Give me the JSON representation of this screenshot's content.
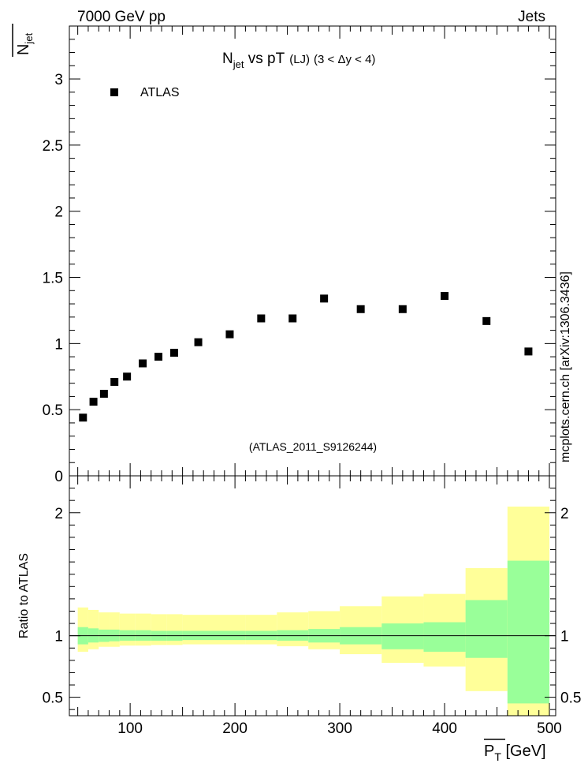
{
  "header": {
    "energy_label": "7000 GeV pp",
    "category_label": "Jets"
  },
  "side_label": "mcplots.cern.ch [arXiv:1306.3436]",
  "chart_data": {
    "type": "scatter",
    "title_main": "N",
    "title_sub": "jet",
    "title_rest": " vs pT",
    "title_selection": "(LJ)",
    "title_range": "(3 < Δy < 4)",
    "analysis_label": "(ATLAS_2011_S9126244)",
    "ylabel_main": "N",
    "ylabel_sub": "jet",
    "ratio_ylabel": "Ratio to ATLAS",
    "xlabel_main": "P",
    "xlabel_sub": "T",
    "xlabel_unit": " [GeV]",
    "legend": [
      "ATLAS"
    ],
    "xlim": [
      42,
      506
    ],
    "ylim": [
      0,
      3.4
    ],
    "ratio_ylim": [
      0.35,
      2.3
    ],
    "x_ticks": [
      100,
      200,
      300,
      400,
      500
    ],
    "x_tick_labels": [
      "100",
      "200",
      "300",
      "400",
      "500"
    ],
    "y_ticks": [
      0,
      0.5,
      1,
      1.5,
      2,
      2.5,
      3
    ],
    "y_tick_labels": [
      "0",
      "0.5",
      "1",
      "1.5",
      "2",
      "2.5",
      "3"
    ],
    "ratio_ticks": [
      0.5,
      1,
      2
    ],
    "ratio_tick_labels": [
      "0.5",
      "1",
      "2"
    ],
    "series": [
      {
        "name": "ATLAS",
        "x": [
          55,
          65,
          75,
          85,
          97,
          112,
          127,
          142,
          165,
          195,
          225,
          255,
          285,
          320,
          360,
          400,
          440,
          480
        ],
        "y": [
          0.44,
          0.56,
          0.62,
          0.71,
          0.75,
          0.85,
          0.9,
          0.93,
          1.01,
          1.07,
          1.19,
          1.19,
          1.34,
          1.26,
          1.26,
          1.36,
          1.17,
          0.94
        ]
      }
    ],
    "ratio_bands": [
      {
        "x0": 50,
        "x1": 60,
        "y_lo": 0.87,
        "y_hi": 1.23,
        "g_lo": 0.93,
        "g_hi": 1.07
      },
      {
        "x0": 60,
        "x1": 70,
        "y_lo": 0.89,
        "y_hi": 1.21,
        "g_lo": 0.945,
        "g_hi": 1.06
      },
      {
        "x0": 70,
        "x1": 80,
        "y_lo": 0.91,
        "y_hi": 1.19,
        "g_lo": 0.95,
        "g_hi": 1.05
      },
      {
        "x0": 80,
        "x1": 90,
        "y_lo": 0.91,
        "y_hi": 1.19,
        "g_lo": 0.955,
        "g_hi": 1.05
      },
      {
        "x0": 90,
        "x1": 105,
        "y_lo": 0.92,
        "y_hi": 1.18,
        "g_lo": 0.96,
        "g_hi": 1.045
      },
      {
        "x0": 105,
        "x1": 120,
        "y_lo": 0.92,
        "y_hi": 1.18,
        "g_lo": 0.96,
        "g_hi": 1.045
      },
      {
        "x0": 120,
        "x1": 135,
        "y_lo": 0.925,
        "y_hi": 1.175,
        "g_lo": 0.96,
        "g_hi": 1.04
      },
      {
        "x0": 135,
        "x1": 150,
        "y_lo": 0.925,
        "y_hi": 1.175,
        "g_lo": 0.96,
        "g_hi": 1.04
      },
      {
        "x0": 150,
        "x1": 180,
        "y_lo": 0.93,
        "y_hi": 1.17,
        "g_lo": 0.965,
        "g_hi": 1.04
      },
      {
        "x0": 180,
        "x1": 210,
        "y_lo": 0.93,
        "y_hi": 1.17,
        "g_lo": 0.965,
        "g_hi": 1.04
      },
      {
        "x0": 210,
        "x1": 240,
        "y_lo": 0.93,
        "y_hi": 1.17,
        "g_lo": 0.965,
        "g_hi": 1.04
      },
      {
        "x0": 240,
        "x1": 270,
        "y_lo": 0.915,
        "y_hi": 1.19,
        "g_lo": 0.96,
        "g_hi": 1.045
      },
      {
        "x0": 270,
        "x1": 300,
        "y_lo": 0.89,
        "y_hi": 1.2,
        "g_lo": 0.945,
        "g_hi": 1.055
      },
      {
        "x0": 300,
        "x1": 340,
        "y_lo": 0.85,
        "y_hi": 1.24,
        "g_lo": 0.93,
        "g_hi": 1.07
      },
      {
        "x0": 340,
        "x1": 380,
        "y_lo": 0.78,
        "y_hi": 1.32,
        "g_lo": 0.89,
        "g_hi": 1.1
      },
      {
        "x0": 380,
        "x1": 420,
        "y_lo": 0.75,
        "y_hi": 1.34,
        "g_lo": 0.87,
        "g_hi": 1.11
      },
      {
        "x0": 420,
        "x1": 460,
        "y_lo": 0.55,
        "y_hi": 1.55,
        "g_lo": 0.82,
        "g_hi": 1.29
      },
      {
        "x0": 460,
        "x1": 500,
        "y_lo": 0.35,
        "y_hi": 2.05,
        "g_lo": 0.45,
        "g_hi": 1.61
      }
    ]
  },
  "colors": {
    "band_yellow": "#ffff99",
    "band_green": "#99ff99",
    "marker": "#000000",
    "analysis_label": "#808080",
    "side_label": "#808080"
  }
}
